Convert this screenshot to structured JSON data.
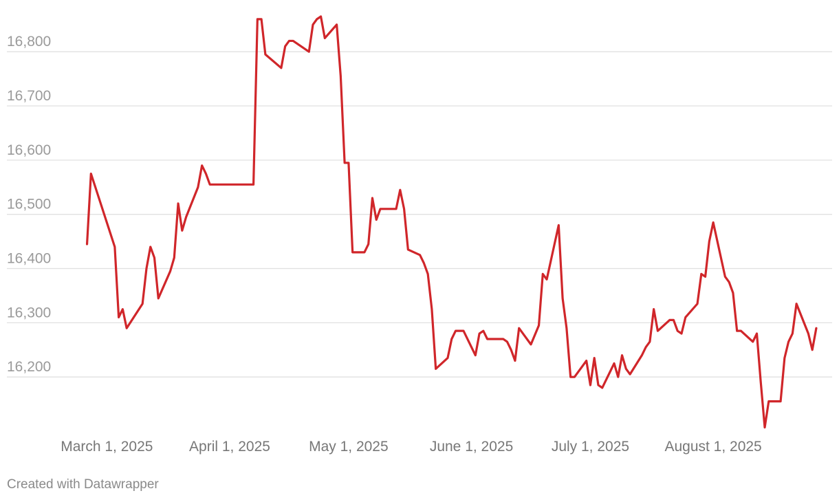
{
  "chart_data": {
    "type": "line",
    "title": "",
    "xlabel": "",
    "ylabel": "",
    "line_color": "#d0262a",
    "ylim": [
      16100,
      16870
    ],
    "yticks": [
      16200,
      16300,
      16400,
      16500,
      16600,
      16700,
      16800
    ],
    "ytick_labels": [
      "16,200",
      "16,300",
      "16,400",
      "16,500",
      "16,600",
      "16,700",
      "16,800"
    ],
    "xlim": [
      "2025-02-22",
      "2025-08-31"
    ],
    "xticks": [
      "2025-03-01",
      "2025-04-01",
      "2025-05-01",
      "2025-06-01",
      "2025-07-01",
      "2025-08-01"
    ],
    "xtick_labels": [
      "March 1, 2025",
      "April 1, 2025",
      "May 1, 2025",
      "June 1, 2025",
      "July 1, 2025",
      "August 1, 2025"
    ],
    "grid": true,
    "series": [
      {
        "values": [
          [
            "2025-02-24",
            16445
          ],
          [
            "2025-02-25",
            16575
          ],
          [
            "2025-02-27",
            16530
          ],
          [
            "2025-03-01",
            16485
          ],
          [
            "2025-03-03",
            16440
          ],
          [
            "2025-03-04",
            16310
          ],
          [
            "2025-03-05",
            16325
          ],
          [
            "2025-03-06",
            16290
          ],
          [
            "2025-03-10",
            16335
          ],
          [
            "2025-03-11",
            16400
          ],
          [
            "2025-03-12",
            16440
          ],
          [
            "2025-03-13",
            16420
          ],
          [
            "2025-03-14",
            16345
          ],
          [
            "2025-03-17",
            16395
          ],
          [
            "2025-03-18",
            16420
          ],
          [
            "2025-03-19",
            16520
          ],
          [
            "2025-03-20",
            16470
          ],
          [
            "2025-03-21",
            16495
          ],
          [
            "2025-03-24",
            16550
          ],
          [
            "2025-03-25",
            16590
          ],
          [
            "2025-03-26",
            16575
          ],
          [
            "2025-03-27",
            16555
          ],
          [
            "2025-04-07",
            16555
          ],
          [
            "2025-04-08",
            16860
          ],
          [
            "2025-04-09",
            16860
          ],
          [
            "2025-04-10",
            16795
          ],
          [
            "2025-04-14",
            16770
          ],
          [
            "2025-04-15",
            16810
          ],
          [
            "2025-04-16",
            16820
          ],
          [
            "2025-04-17",
            16820
          ],
          [
            "2025-04-21",
            16800
          ],
          [
            "2025-04-22",
            16850
          ],
          [
            "2025-04-23",
            16860
          ],
          [
            "2025-04-24",
            16865
          ],
          [
            "2025-04-25",
            16825
          ],
          [
            "2025-04-28",
            16850
          ],
          [
            "2025-04-29",
            16755
          ],
          [
            "2025-04-30",
            16595
          ],
          [
            "2025-05-01",
            16595
          ],
          [
            "2025-05-02",
            16430
          ],
          [
            "2025-05-05",
            16430
          ],
          [
            "2025-05-06",
            16445
          ],
          [
            "2025-05-07",
            16530
          ],
          [
            "2025-05-08",
            16490
          ],
          [
            "2025-05-09",
            16510
          ],
          [
            "2025-05-13",
            16510
          ],
          [
            "2025-05-14",
            16545
          ],
          [
            "2025-05-15",
            16510
          ],
          [
            "2025-05-16",
            16435
          ],
          [
            "2025-05-19",
            16425
          ],
          [
            "2025-05-20",
            16410
          ],
          [
            "2025-05-21",
            16390
          ],
          [
            "2025-05-22",
            16325
          ],
          [
            "2025-05-23",
            16215
          ],
          [
            "2025-05-26",
            16235
          ],
          [
            "2025-05-27",
            16270
          ],
          [
            "2025-05-28",
            16285
          ],
          [
            "2025-05-30",
            16285
          ],
          [
            "2025-06-02",
            16240
          ],
          [
            "2025-06-03",
            16280
          ],
          [
            "2025-06-04",
            16285
          ],
          [
            "2025-06-05",
            16270
          ],
          [
            "2025-06-09",
            16270
          ],
          [
            "2025-06-10",
            16265
          ],
          [
            "2025-06-11",
            16250
          ],
          [
            "2025-06-12",
            16230
          ],
          [
            "2025-06-13",
            16290
          ],
          [
            "2025-06-16",
            16260
          ],
          [
            "2025-06-18",
            16295
          ],
          [
            "2025-06-19",
            16390
          ],
          [
            "2025-06-20",
            16380
          ],
          [
            "2025-06-23",
            16480
          ],
          [
            "2025-06-24",
            16345
          ],
          [
            "2025-06-25",
            16290
          ],
          [
            "2025-06-26",
            16200
          ],
          [
            "2025-06-27",
            16200
          ],
          [
            "2025-06-30",
            16230
          ],
          [
            "2025-07-01",
            16185
          ],
          [
            "2025-07-02",
            16235
          ],
          [
            "2025-07-03",
            16185
          ],
          [
            "2025-07-04",
            16180
          ],
          [
            "2025-07-07",
            16225
          ],
          [
            "2025-07-08",
            16200
          ],
          [
            "2025-07-09",
            16240
          ],
          [
            "2025-07-10",
            16215
          ],
          [
            "2025-07-11",
            16205
          ],
          [
            "2025-07-14",
            16240
          ],
          [
            "2025-07-15",
            16255
          ],
          [
            "2025-07-16",
            16265
          ],
          [
            "2025-07-17",
            16325
          ],
          [
            "2025-07-18",
            16285
          ],
          [
            "2025-07-21",
            16305
          ],
          [
            "2025-07-22",
            16305
          ],
          [
            "2025-07-23",
            16285
          ],
          [
            "2025-07-24",
            16280
          ],
          [
            "2025-07-25",
            16310
          ],
          [
            "2025-07-28",
            16335
          ],
          [
            "2025-07-29",
            16390
          ],
          [
            "2025-07-30",
            16385
          ],
          [
            "2025-07-31",
            16450
          ],
          [
            "2025-08-01",
            16485
          ],
          [
            "2025-08-04",
            16385
          ],
          [
            "2025-08-05",
            16375
          ],
          [
            "2025-08-06",
            16355
          ],
          [
            "2025-08-07",
            16285
          ],
          [
            "2025-08-08",
            16285
          ],
          [
            "2025-08-11",
            16265
          ],
          [
            "2025-08-12",
            16280
          ],
          [
            "2025-08-13",
            16190
          ],
          [
            "2025-08-14",
            16107
          ],
          [
            "2025-08-15",
            16155
          ],
          [
            "2025-08-18",
            16155
          ],
          [
            "2025-08-19",
            16235
          ],
          [
            "2025-08-20",
            16265
          ],
          [
            "2025-08-21",
            16280
          ],
          [
            "2025-08-22",
            16335
          ],
          [
            "2025-08-25",
            16280
          ],
          [
            "2025-08-26",
            16250
          ],
          [
            "2025-08-27",
            16290
          ]
        ]
      }
    ]
  },
  "footer": {
    "credit": "Created with Datawrapper"
  }
}
